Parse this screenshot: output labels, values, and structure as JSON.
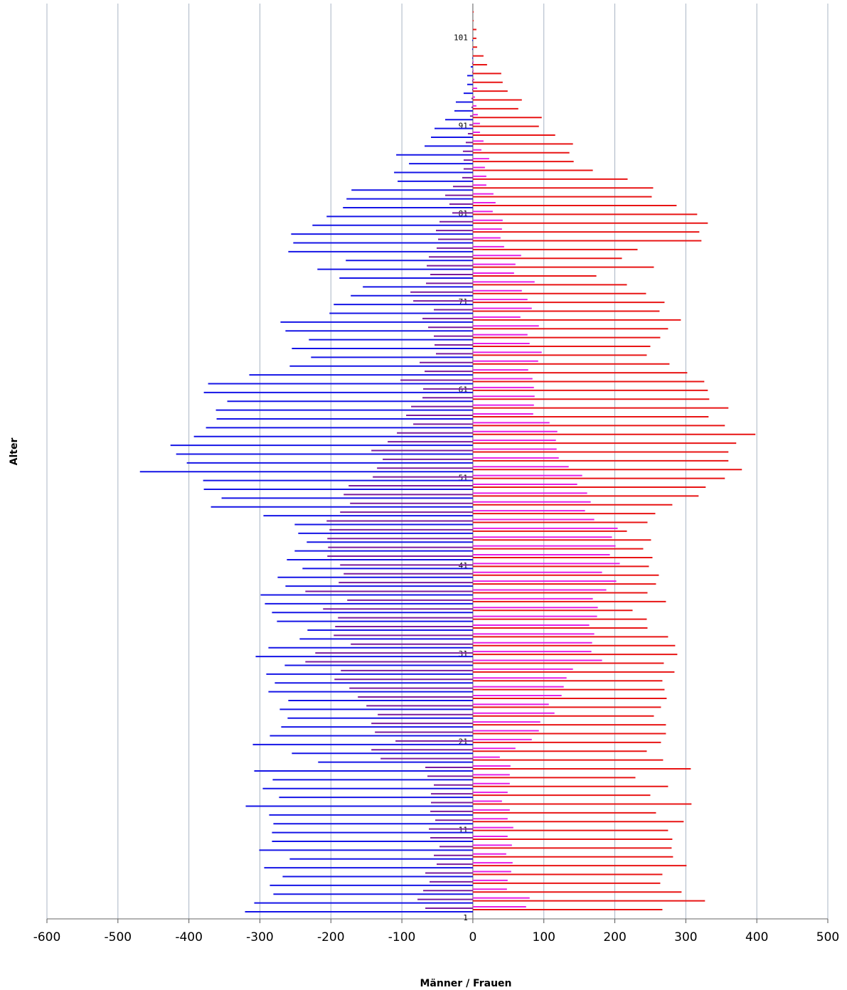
{
  "chart_data": {
    "type": "bar",
    "orientation": "horizontal",
    "xlabel": "Männer / Frauen",
    "ylabel": "Alter",
    "xlim": [
      -600,
      500
    ],
    "xticks": [
      -600,
      -500,
      -400,
      -300,
      -200,
      -100,
      0,
      100,
      200,
      300,
      400,
      500
    ],
    "grid": true,
    "categories": [
      "1",
      null,
      null,
      null,
      null,
      null,
      null,
      null,
      null,
      null,
      "11",
      null,
      null,
      null,
      null,
      null,
      null,
      null,
      null,
      null,
      "21",
      null,
      null,
      null,
      null,
      null,
      null,
      null,
      null,
      null,
      "31",
      null,
      null,
      null,
      null,
      null,
      null,
      null,
      null,
      null,
      "41",
      null,
      null,
      null,
      null,
      null,
      null,
      null,
      null,
      null,
      "51",
      null,
      null,
      null,
      null,
      null,
      null,
      null,
      null,
      null,
      "61",
      null,
      null,
      null,
      null,
      null,
      null,
      null,
      null,
      null,
      "71",
      null,
      null,
      null,
      null,
      null,
      null,
      null,
      null,
      null,
      "81",
      null,
      null,
      null,
      null,
      null,
      null,
      null,
      null,
      null,
      "91",
      null,
      null,
      null,
      null,
      null,
      null,
      null,
      null,
      null,
      "101",
      null,
      null,
      null
    ],
    "series": [
      {
        "color": "#1414e6",
        "values": [
          -321,
          -308,
          -281,
          -286,
          -268,
          -294,
          -258,
          -301,
          -283,
          -283,
          -281,
          -287,
          -320,
          -273,
          -296,
          -282,
          -308,
          -218,
          -255,
          -310,
          -286,
          -270,
          -261,
          -272,
          -260,
          -288,
          -279,
          -291,
          -265,
          -306,
          -288,
          -244,
          -233,
          -276,
          -283,
          -293,
          -299,
          -264,
          -275,
          -240,
          -262,
          -251,
          -234,
          -246,
          -251,
          -295,
          -369,
          -354,
          -379,
          -380,
          -469,
          -403,
          -418,
          -426,
          -393,
          -376,
          -361,
          -362,
          -346,
          -379,
          -373,
          -315,
          -258,
          -228,
          -255,
          -231,
          -264,
          -271,
          -202,
          -196,
          -172,
          -155,
          -188,
          -219,
          -179,
          -260,
          -253,
          -256,
          -226,
          -206,
          -183,
          -178,
          -171,
          -106,
          -111,
          -90,
          -108,
          -68,
          -59,
          -54,
          -39,
          -26,
          -24,
          -13,
          -8,
          -8,
          -3,
          -1,
          -1,
          -1,
          0,
          0,
          0,
          0
        ]
      },
      {
        "color": "#e81414",
        "values": [
          267,
          327,
          294,
          264,
          267,
          301,
          282,
          280,
          281,
          275,
          297,
          258,
          308,
          250,
          275,
          229,
          307,
          268,
          245,
          265,
          272,
          272,
          255,
          265,
          273,
          270,
          267,
          284,
          269,
          288,
          285,
          275,
          246,
          245,
          225,
          272,
          246,
          258,
          262,
          248,
          253,
          240,
          251,
          217,
          246,
          257,
          281,
          318,
          328,
          355,
          379,
          360,
          360,
          371,
          398,
          355,
          332,
          360,
          333,
          331,
          326,
          302,
          277,
          245,
          250,
          264,
          275,
          293,
          263,
          270,
          244,
          217,
          174,
          255,
          210,
          232,
          322,
          319,
          331,
          316,
          287,
          252,
          254,
          218,
          169,
          142,
          136,
          141,
          116,
          93,
          97,
          64,
          69,
          49,
          42,
          40,
          20,
          15,
          6,
          5,
          5,
          1,
          1,
          0
        ]
      },
      {
        "color": "#7a1a9e",
        "values": [
          -67,
          -78,
          -70,
          -61,
          -67,
          -51,
          -55,
          -47,
          -60,
          -62,
          -53,
          -60,
          -59,
          -59,
          -55,
          -64,
          -67,
          -130,
          -143,
          -109,
          -138,
          -143,
          -134,
          -150,
          -162,
          -174,
          -195,
          -186,
          -236,
          -222,
          -172,
          -196,
          -194,
          -190,
          -211,
          -177,
          -236,
          -189,
          -182,
          -187,
          -205,
          -204,
          -205,
          -202,
          -206,
          -187,
          -173,
          -182,
          -175,
          -141,
          -135,
          -127,
          -143,
          -120,
          -107,
          -84,
          -94,
          -87,
          -71,
          -70,
          -102,
          -68,
          -75,
          -52,
          -54,
          -55,
          -63,
          -71,
          -55,
          -84,
          -88,
          -66,
          -60,
          -65,
          -62,
          -51,
          -49,
          -52,
          -47,
          -29,
          -33,
          -39,
          -28,
          -15,
          -13,
          -13,
          -14,
          -10,
          -7,
          -5,
          -4,
          -2,
          -2,
          -1,
          -1,
          -1,
          -1,
          0,
          0,
          0,
          0,
          0,
          0,
          0
        ]
      },
      {
        "color": "#e61ee6",
        "values": [
          75,
          80,
          48,
          49,
          54,
          56,
          47,
          55,
          49,
          57,
          49,
          52,
          41,
          49,
          52,
          52,
          53,
          38,
          60,
          83,
          93,
          95,
          115,
          107,
          125,
          128,
          132,
          141,
          182,
          167,
          168,
          171,
          164,
          175,
          176,
          169,
          188,
          202,
          182,
          207,
          193,
          201,
          196,
          204,
          171,
          158,
          166,
          161,
          147,
          154,
          135,
          121,
          118,
          117,
          119,
          108,
          85,
          86,
          87,
          86,
          84,
          78,
          92,
          97,
          80,
          77,
          93,
          67,
          83,
          77,
          69,
          87,
          58,
          60,
          68,
          44,
          39,
          41,
          42,
          28,
          32,
          29,
          19,
          19,
          17,
          23,
          12,
          15,
          10,
          10,
          7,
          5,
          3,
          6,
          2,
          1,
          1,
          0,
          0,
          0,
          0,
          0,
          0,
          0
        ]
      }
    ]
  }
}
